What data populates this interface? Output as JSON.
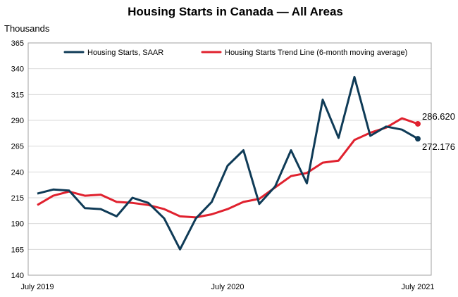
{
  "chart_data": {
    "type": "line",
    "title": "Housing Starts in Canada — All Areas",
    "ylabel": "Thousands",
    "xlabel": "",
    "ylim": [
      140,
      365
    ],
    "yticks": [
      140,
      165,
      190,
      215,
      240,
      265,
      290,
      315,
      340,
      365
    ],
    "x_tick_labels": [
      "July 2019",
      "July 2020",
      "July 2021"
    ],
    "x": [
      "2019-07",
      "2019-08",
      "2019-09",
      "2019-10",
      "2019-11",
      "2019-12",
      "2020-01",
      "2020-02",
      "2020-03",
      "2020-04",
      "2020-05",
      "2020-06",
      "2020-07",
      "2020-08",
      "2020-09",
      "2020-10",
      "2020-11",
      "2020-12",
      "2021-01",
      "2021-02",
      "2021-03",
      "2021-04",
      "2021-05",
      "2021-06",
      "2021-07"
    ],
    "grid": true,
    "legend": "top",
    "series": [
      {
        "name": "Housing Starts, SAAR",
        "color": "#0f3b57",
        "values": [
          219,
          223,
          222,
          205,
          204,
          197,
          215,
          210,
          195,
          165,
          195,
          211,
          246,
          261,
          209,
          226,
          261,
          229,
          310,
          273,
          332,
          275,
          284,
          281,
          272.176
        ]
      },
      {
        "name": "Housing Starts Trend Line (6-month moving average)",
        "color": "#e0212e",
        "values": [
          208,
          217,
          221,
          217,
          218,
          211,
          210,
          208,
          204,
          197,
          196,
          199,
          204,
          211,
          214,
          225,
          236,
          239,
          249,
          251,
          271,
          278,
          283,
          292,
          286.62
        ]
      }
    ],
    "end_labels": [
      "286.620",
      "272.176"
    ]
  }
}
